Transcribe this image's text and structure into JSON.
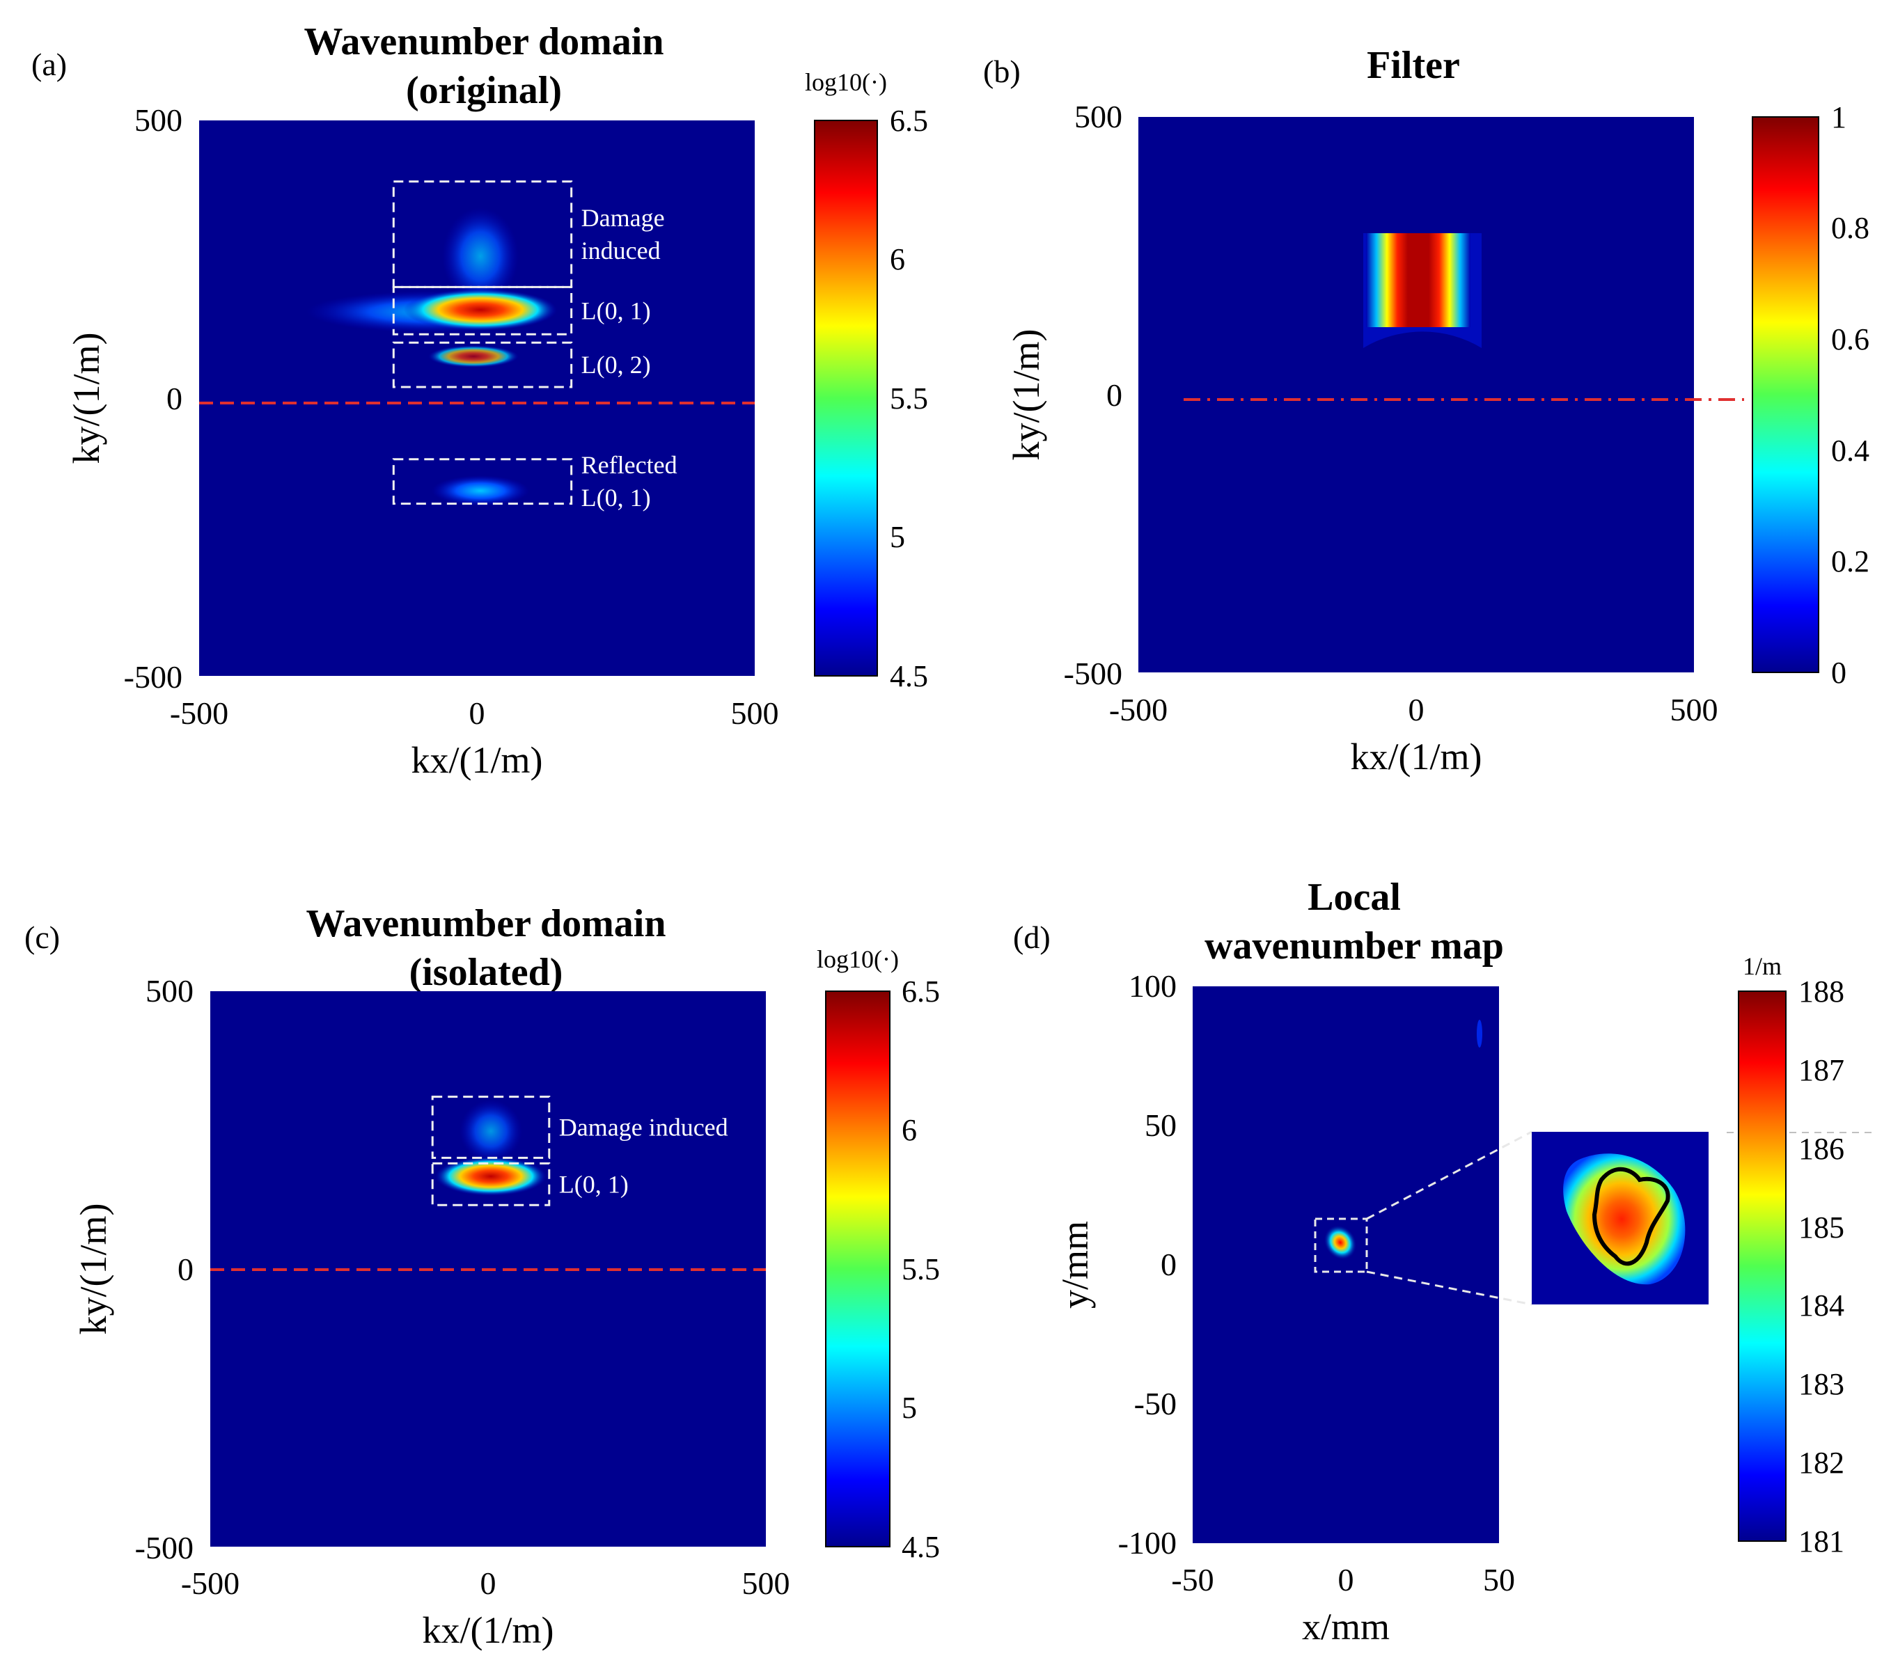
{
  "chart_data": [
    {
      "panel": "(a)",
      "type": "heatmap",
      "title": [
        "Wavenumber domain",
        "(original)"
      ],
      "xlabel": "kx/(1/m)",
      "ylabel": "ky/(1/m)",
      "xlim": [
        -500,
        500
      ],
      "ylim": [
        -500,
        500
      ],
      "xticks": [
        "-500",
        "0",
        "500"
      ],
      "yticks": [
        "500",
        "0",
        "-500"
      ],
      "colorbar": {
        "unit": "log10(·)",
        "range": [
          4.5,
          6.5
        ],
        "ticks": [
          "6.5",
          "6",
          "5.5",
          "5",
          "4.5"
        ]
      },
      "annotations": [
        {
          "lines": [
            "Damage",
            "induced"
          ],
          "box_kx": [
            -150,
            170
          ],
          "box_ky": [
            200,
            390
          ]
        },
        {
          "lines": [
            "L(0, 1)"
          ],
          "box_kx": [
            -150,
            170
          ],
          "box_ky": [
            115,
            200
          ]
        },
        {
          "lines": [
            "L(0, 2)"
          ],
          "box_kx": [
            -150,
            170
          ],
          "box_ky": [
            20,
            100
          ]
        },
        {
          "lines": [
            "Reflected",
            "L(0, 1)"
          ],
          "box_kx": [
            -150,
            170
          ],
          "box_ky": [
            -190,
            -110
          ]
        }
      ],
      "reference_line_ky": 0
    },
    {
      "panel": "(b)",
      "type": "heatmap",
      "title": [
        "Filter"
      ],
      "xlabel": "kx/(1/m)",
      "ylabel": "ky/(1/m)",
      "xlim": [
        -500,
        500
      ],
      "ylim": [
        -500,
        500
      ],
      "xticks": [
        "-500",
        "0",
        "500"
      ],
      "yticks": [
        "500",
        "0",
        "-500"
      ],
      "colorbar": {
        "unit": "",
        "range": [
          0,
          1
        ],
        "ticks": [
          "1",
          "0.8",
          "0.6",
          "0.4",
          "0.2",
          "0"
        ]
      },
      "passband": {
        "kx": [
          -80,
          80
        ],
        "ky": [
          80,
          290
        ]
      },
      "reference_line_ky": 0
    },
    {
      "panel": "(c)",
      "type": "heatmap",
      "title": [
        "Wavenumber domain",
        "(isolated)"
      ],
      "xlabel": "kx/(1/m)",
      "ylabel": "ky/(1/m)",
      "xlim": [
        -500,
        500
      ],
      "ylim": [
        -500,
        500
      ],
      "xticks": [
        "-500",
        "0",
        "500"
      ],
      "yticks": [
        "500",
        "0",
        "-500"
      ],
      "colorbar": {
        "unit": "log10(·)",
        "range": [
          4.5,
          6.5
        ],
        "ticks": [
          "6.5",
          "6",
          "5.5",
          "5",
          "4.5"
        ]
      },
      "annotations": [
        {
          "lines": [
            "Damage induced"
          ],
          "box_kx": [
            -100,
            110
          ],
          "box_ky": [
            200,
            310
          ]
        },
        {
          "lines": [
            "L(0, 1)"
          ],
          "box_kx": [
            -100,
            110
          ],
          "box_ky": [
            115,
            190
          ]
        }
      ],
      "reference_line_ky": 0
    },
    {
      "panel": "(d)",
      "type": "heatmap",
      "title": [
        "Local",
        "wavenumber map"
      ],
      "xlabel": "x/mm",
      "ylabel": "y/mm",
      "xlim": [
        -50,
        50
      ],
      "ylim": [
        -100,
        100
      ],
      "xticks": [
        "-50",
        "0",
        "50"
      ],
      "yticks": [
        "100",
        "50",
        "0",
        "-50",
        "-100"
      ],
      "colorbar": {
        "unit": "1/m",
        "range": [
          181,
          188
        ],
        "ticks": [
          "188",
          "187",
          "186",
          "185",
          "184",
          "183",
          "182",
          "181"
        ]
      },
      "hotspot": {
        "x_mm": 0,
        "y_mm": 10
      },
      "zoom_region": {
        "x_mm": [
          -9,
          8
        ],
        "y_mm": [
          0,
          19
        ]
      }
    }
  ]
}
